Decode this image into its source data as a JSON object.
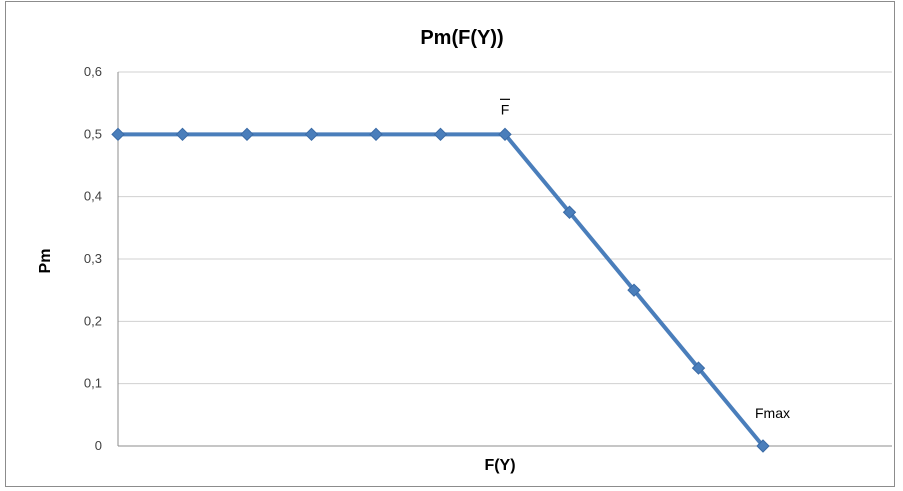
{
  "chart_data": {
    "type": "line",
    "title": "Pm(F(Y))",
    "xlabel": "F(Y)",
    "ylabel": "Pm",
    "ylim": [
      0,
      0.6
    ],
    "y_ticks": [
      "0",
      "0,1",
      "0,2",
      "0,3",
      "0,4",
      "0,5",
      "0,6"
    ],
    "grid": true,
    "legend": "none",
    "x": [
      0,
      1,
      2,
      3,
      4,
      5,
      6,
      7,
      8,
      9,
      10
    ],
    "series": [
      {
        "values": [
          0.5,
          0.5,
          0.5,
          0.5,
          0.5,
          0.5,
          0.5,
          0.375,
          0.25,
          0.125,
          0
        ]
      }
    ],
    "annotations": [
      {
        "text": "F",
        "overline": true,
        "point_index": 6
      },
      {
        "text": "Fmax",
        "point_index": 10
      }
    ],
    "colors": {
      "series": "#4a7ebb",
      "grid": "#d0d0d0",
      "axis": "#8c8c8c"
    }
  }
}
